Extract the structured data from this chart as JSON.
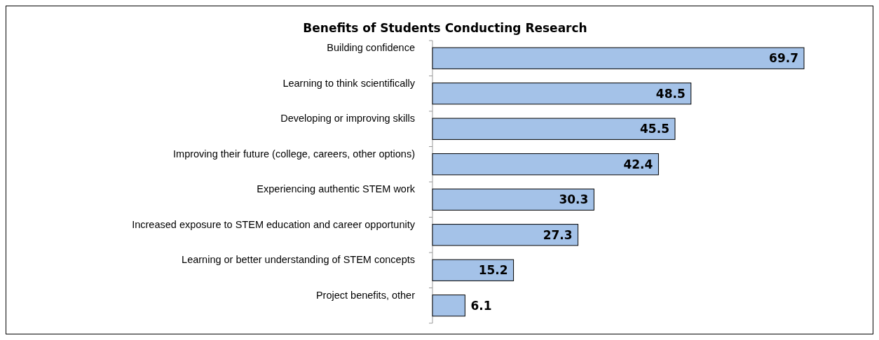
{
  "chart_data": {
    "type": "bar",
    "orientation": "horizontal",
    "title": "Benefits of Students Conducting Research",
    "categories": [
      "Building confidence",
      "Learning to think scientifically",
      "Developing or improving skills",
      "Improving their future (college, careers, other options)",
      "Experiencing authentic STEM work",
      "Increased exposure to STEM education and career opportunity",
      "Learning or better understanding of STEM concepts",
      "Project benefits, other"
    ],
    "values": [
      69.7,
      48.5,
      45.5,
      42.4,
      30.3,
      27.3,
      15.2,
      6.1
    ],
    "color": "#a4c2e8",
    "data_labels": true
  }
}
